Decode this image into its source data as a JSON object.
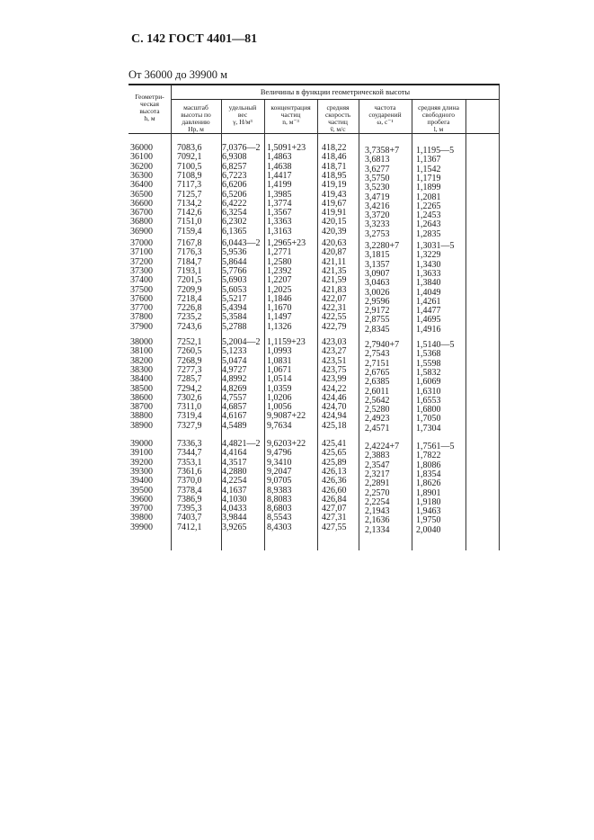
{
  "title": "С. 142 ГОСТ 4401—81",
  "subtitle": "От 36000 до 39900 м",
  "table": {
    "group_header": "Величины в функции геометрической высоты",
    "columns": [
      "Геометри-\nческая\nвысота\nh, м",
      "масштаб\nвысоты по\nдавлению\nHp, м",
      "удельный\nвес\nγ, Н/м³",
      "концентрация\nчастиц\nn, м⁻³",
      "средняя\nскорость\nчастиц\nv̄, м/с",
      "частота\nсоударений\nω, с⁻¹",
      "средняя длина\nсвободного\nпробега\nl, м"
    ],
    "groups": [
      [
        [
          "36000",
          "7083,6",
          "7,0376—2",
          "1,5091+23",
          "418,22",
          "3,7358+7",
          "1,1195—5"
        ],
        [
          "36100",
          "7092,1",
          "6,9308",
          "1,4863",
          "418,46",
          "3,6813",
          "1,1367"
        ],
        [
          "36200",
          "7100,5",
          "6,8257",
          "1,4638",
          "418,71",
          "3,6277",
          "1,1542"
        ],
        [
          "36300",
          "7108,9",
          "6,7223",
          "1,4417",
          "418,95",
          "3,5750",
          "1,1719"
        ],
        [
          "36400",
          "7117,3",
          "6,6206",
          "1,4199",
          "419,19",
          "3,5230",
          "1,1899"
        ],
        [
          "36500",
          "7125,7",
          "6,5206",
          "1,3985",
          "419,43",
          "3,4719",
          "1,2081"
        ],
        [
          "36600",
          "7134,2",
          "6,4222",
          "1,3774",
          "419,67",
          "3,4216",
          "1,2265"
        ],
        [
          "36700",
          "7142,6",
          "6,3254",
          "1,3567",
          "419,91",
          "3,3720",
          "1,2453"
        ],
        [
          "36800",
          "7151,0",
          "6,2302",
          "1,3363",
          "420,15",
          "3,3233",
          "1,2643"
        ],
        [
          "36900",
          "7159,4",
          "6,1365",
          "1,3163",
          "420,39",
          "3,2753",
          "1,2835"
        ]
      ],
      [
        [
          "37000",
          "7167,8",
          "6,0443—2",
          "1,2965+23",
          "420,63",
          "3,2280+7",
          "1,3031—5"
        ],
        [
          "37100",
          "7176,3",
          "5,9536",
          "1,2771",
          "420,87",
          "3,1815",
          "1,3229"
        ],
        [
          "37200",
          "7184,7",
          "5,8644",
          "1,2580",
          "421,11",
          "3,1357",
          "1,3430"
        ],
        [
          "37300",
          "7193,1",
          "5,7766",
          "1,2392",
          "421,35",
          "3,0907",
          "1,3633"
        ],
        [
          "37400",
          "7201,5",
          "5,6903",
          "1,2207",
          "421,59",
          "3,0463",
          "1,3840"
        ],
        [
          "37500",
          "7209,9",
          "5,6053",
          "1,2025",
          "421,83",
          "3,0026",
          "1,4049"
        ],
        [
          "37600",
          "7218,4",
          "5,5217",
          "1,1846",
          "422,07",
          "2,9596",
          "1,4261"
        ],
        [
          "37700",
          "7226,8",
          "5,4394",
          "1,1670",
          "422,31",
          "2,9172",
          "1,4477"
        ],
        [
          "37800",
          "7235,2",
          "5,3584",
          "1,1497",
          "422,55",
          "2,8755",
          "1,4695"
        ],
        [
          "37900",
          "7243,6",
          "5,2788",
          "1,1326",
          "422,79",
          "2,8345",
          "1,4916"
        ]
      ],
      [
        [
          "38000",
          "7252,1",
          "5,2004—2",
          "1,1159+23",
          "423,03",
          "2,7940+7",
          "1,5140—5"
        ],
        [
          "38100",
          "7260,5",
          "5,1233",
          "1,0993",
          "423,27",
          "2,7543",
          "1,5368"
        ],
        [
          "38200",
          "7268,9",
          "5,0474",
          "1,0831",
          "423,51",
          "2,7151",
          "1,5598"
        ],
        [
          "38300",
          "7277,3",
          "4,9727",
          "1,0671",
          "423,75",
          "2,6765",
          "1,5832"
        ],
        [
          "38400",
          "7285,7",
          "4,8992",
          "1,0514",
          "423,99",
          "2,6385",
          "1,6069"
        ],
        [
          "38500",
          "7294,2",
          "4,8269",
          "1,0359",
          "424,22",
          "2,6011",
          "1,6310"
        ],
        [
          "38600",
          "7302,6",
          "4,7557",
          "1,0206",
          "424,46",
          "2,5642",
          "1,6553"
        ],
        [
          "38700",
          "7311,0",
          "4,6857",
          "1,0056",
          "424,70",
          "2,5280",
          "1,6800"
        ],
        [
          "38800",
          "7319,4",
          "4,6167",
          "9,9087+22",
          "424,94",
          "2,4923",
          "1,7050"
        ],
        [
          "38900",
          "7327,9",
          "4,5489",
          "9,7634",
          "425,18",
          "2,4571",
          "1,7304"
        ]
      ],
      [
        [
          "39000",
          "7336,3",
          "4,4821—2",
          "9,6203+22",
          "425,41",
          "2,4224+7",
          "1,7561—5"
        ],
        [
          "39100",
          "7344,7",
          "4,4164",
          "9,4796",
          "425,65",
          "2,3883",
          "1,7822"
        ],
        [
          "39200",
          "7353,1",
          "4,3517",
          "9,3410",
          "425,89",
          "2,3547",
          "1,8086"
        ],
        [
          "39300",
          "7361,6",
          "4,2880",
          "9,2047",
          "426,13",
          "2,3217",
          "1,8354"
        ],
        [
          "39400",
          "7370,0",
          "4,2254",
          "9,0705",
          "426,36",
          "2,2891",
          "1,8626"
        ],
        [
          "39500",
          "7378,4",
          "4,1637",
          "8,9383",
          "426,60",
          "2,2570",
          "1,8901"
        ],
        [
          "39600",
          "7386,9",
          "4,1030",
          "8,8083",
          "426,84",
          "2,2254",
          "1,9180"
        ],
        [
          "39700",
          "7395,3",
          "4,0433",
          "8,6803",
          "427,07",
          "2,1943",
          "1,9463"
        ],
        [
          "39800",
          "7403,7",
          "3,9844",
          "8,5543",
          "427,31",
          "2,1636",
          "1,9750"
        ],
        [
          "39900",
          "7412,1",
          "3,9265",
          "8,4303",
          "427,55",
          "2,1334",
          "2,0040"
        ]
      ]
    ]
  }
}
